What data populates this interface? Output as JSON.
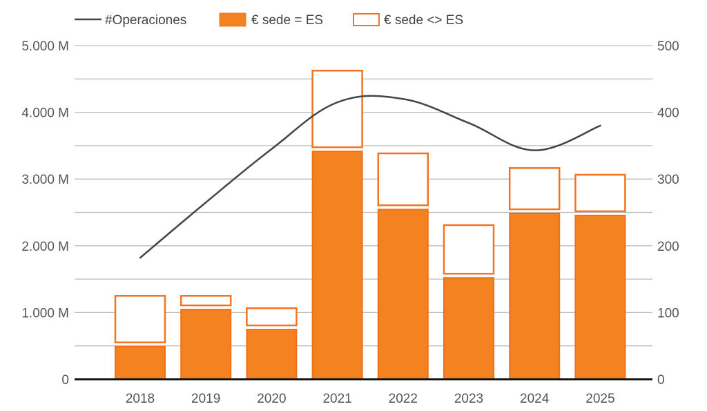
{
  "chart_data": {
    "type": "bar",
    "stacked": true,
    "combo_line": true,
    "title": "",
    "categories": [
      "2018",
      "2019",
      "2020",
      "2021",
      "2022",
      "2023",
      "2024",
      "2025"
    ],
    "series": [
      {
        "name": "€ sede = ES",
        "kind": "bar",
        "axis": "left",
        "style": "filled",
        "color": "#f58220",
        "values": [
          500,
          1055,
          755,
          3425,
          2555,
          1530,
          2495,
          2465
        ]
      },
      {
        "name": "€ sede <> ES",
        "kind": "bar",
        "axis": "left",
        "style": "outline",
        "color": "#f5731f",
        "values": [
          760,
          205,
          320,
          1210,
          840,
          790,
          680,
          610
        ]
      },
      {
        "name": "#Operaciones",
        "kind": "line",
        "axis": "right",
        "color": "#444444",
        "values": [
          182,
          265,
          345,
          415,
          420,
          384,
          343,
          380
        ]
      }
    ],
    "left_axis": {
      "ylim": [
        0,
        5000
      ],
      "ticks": [
        0,
        1000,
        2000,
        3000,
        4000,
        5000
      ],
      "tick_labels": [
        "0",
        "1.000 M",
        "2.000 M",
        "3.000 M",
        "4.000 M",
        "5.000 M"
      ],
      "minor_gridlines_every": 500
    },
    "right_axis": {
      "ylim": [
        0,
        500
      ],
      "ticks": [
        0,
        100,
        200,
        300,
        400,
        500
      ],
      "tick_labels": [
        "0",
        "100",
        "200",
        "300",
        "400",
        "500"
      ]
    },
    "xlabel": "",
    "ylabel": "",
    "grid": true,
    "legend": {
      "placement": "top-left",
      "entries": [
        "#Operaciones",
        "€ sede = ES",
        "€ sede <> ES"
      ]
    }
  }
}
